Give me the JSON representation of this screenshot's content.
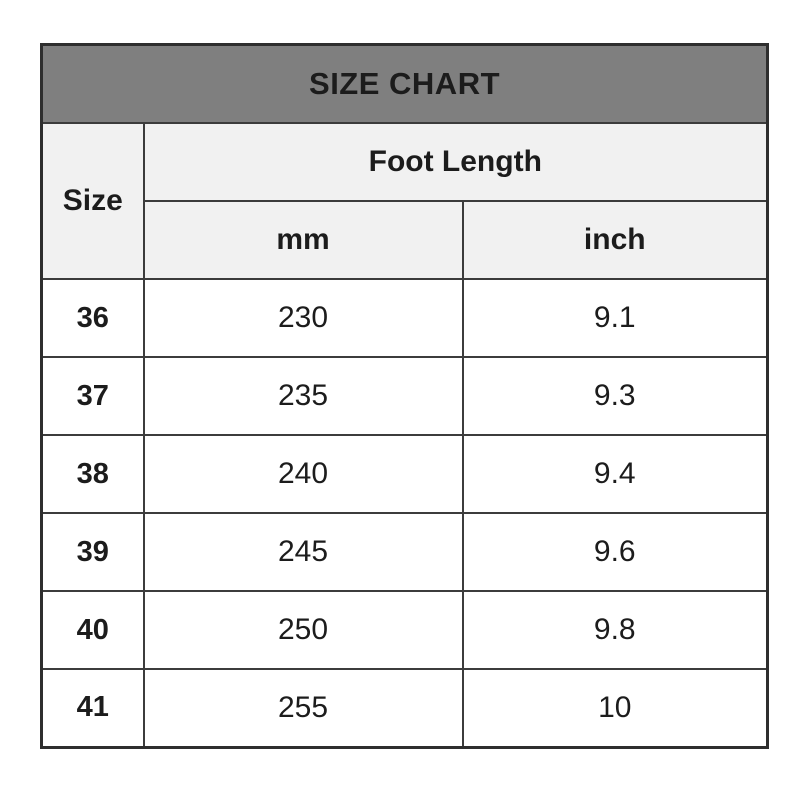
{
  "size_chart": {
    "title": "SIZE CHART",
    "header": {
      "size_label": "Size",
      "foot_length_label": "Foot Length",
      "mm_label": "mm",
      "inch_label": "inch"
    },
    "rows": [
      {
        "size": "36",
        "mm": "230",
        "inch": "9.1"
      },
      {
        "size": "37",
        "mm": "235",
        "inch": "9.3"
      },
      {
        "size": "38",
        "mm": "240",
        "inch": "9.4"
      },
      {
        "size": "39",
        "mm": "245",
        "inch": "9.6"
      },
      {
        "size": "40",
        "mm": "250",
        "inch": "9.8"
      },
      {
        "size": "41",
        "mm": "255",
        "inch": "10"
      }
    ],
    "colors": {
      "title_background": "#7f7f7f",
      "header_background": "#f1f1f1",
      "border": "#3c3c3c",
      "text": "#1c1c1c"
    }
  }
}
